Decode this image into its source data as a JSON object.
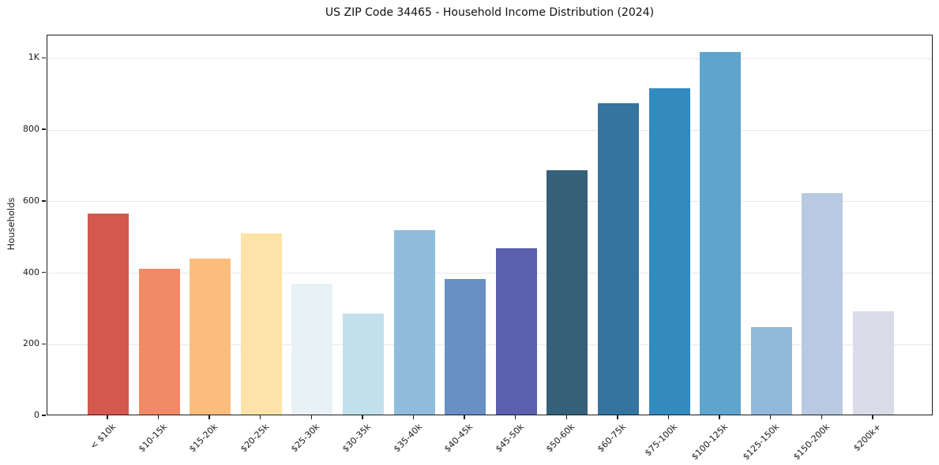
{
  "chart_data": {
    "type": "bar",
    "title": "US ZIP Code 34465 - Household Income Distribution (2024)",
    "xlabel": "",
    "ylabel": "Households",
    "categories": [
      "< $10k",
      "$10-15k",
      "$15-20k",
      "$20-25k",
      "$25-30k",
      "$30-35k",
      "$35-40k",
      "$40-45k",
      "$45-50k",
      "$50-60k",
      "$60-75k",
      "$75-100k",
      "$100-125k",
      "$125-150k",
      "$150-200k",
      "$200k+"
    ],
    "values": [
      562,
      408,
      437,
      508,
      366,
      283,
      516,
      380,
      465,
      684,
      871,
      913,
      1014,
      245,
      620,
      289
    ],
    "bar_colors": [
      "#d5584e",
      "#f28a67",
      "#fabd7e",
      "#fde3a7",
      "#e7f1f6",
      "#c2e0ec",
      "#90bddc",
      "#6890c4",
      "#5a5fae",
      "#36607a",
      "#34749e",
      "#338abf",
      "#5fa5cb",
      "#92b8da",
      "#b9c9e1",
      "#d9dbe8"
    ],
    "ytick_values": [
      0,
      200,
      400,
      600,
      800,
      1000
    ],
    "ytick_labels": [
      "0",
      "200",
      "400",
      "600",
      "800",
      "1K"
    ],
    "ylim": [
      0,
      1065
    ],
    "grid": "horizontal",
    "legend": "none",
    "colors": {
      "spine": "#1c1c1c",
      "gridline": "#e7e7e7",
      "background": "#ffffff",
      "text": "#1a1a1a"
    }
  }
}
